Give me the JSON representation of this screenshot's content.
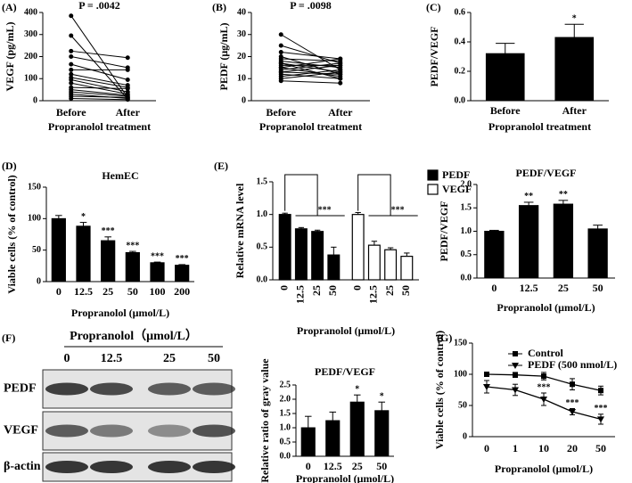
{
  "chart_data": [
    {
      "type": "paired",
      "panel_label": "(A)",
      "title": "P = .0042",
      "ylabel": "VEGF (pg/mL)",
      "xlabel": "Propranolol treatment",
      "categories": [
        "Before",
        "After"
      ],
      "ylim": [
        0,
        400
      ],
      "yticks": [
        0,
        100,
        200,
        300,
        400
      ],
      "color": "#000000",
      "pairs": [
        [
          385,
          15
        ],
        [
          295,
          8
        ],
        [
          225,
          195
        ],
        [
          200,
          150
        ],
        [
          165,
          95
        ],
        [
          140,
          140
        ],
        [
          120,
          70
        ],
        [
          105,
          60
        ],
        [
          95,
          40
        ],
        [
          80,
          30
        ],
        [
          60,
          55
        ],
        [
          50,
          25
        ],
        [
          40,
          20
        ],
        [
          30,
          10
        ],
        [
          20,
          15
        ],
        [
          10,
          5
        ]
      ]
    },
    {
      "type": "paired",
      "panel_label": "(B)",
      "title": "P = .0098",
      "ylabel": "PEDF (μg/mL)",
      "xlabel": "Propranolol treatment",
      "categories": [
        "Before",
        "After"
      ],
      "ylim": [
        0,
        40
      ],
      "yticks": [
        0,
        10,
        20,
        30,
        40
      ],
      "color": "#000000",
      "pairs": [
        [
          30,
          14
        ],
        [
          25,
          17
        ],
        [
          22,
          19
        ],
        [
          20,
          12
        ],
        [
          19,
          18
        ],
        [
          18,
          15
        ],
        [
          17,
          13
        ],
        [
          16,
          16
        ],
        [
          15,
          11
        ],
        [
          14,
          17
        ],
        [
          13,
          12
        ],
        [
          12,
          10
        ],
        [
          11,
          14
        ],
        [
          10,
          13
        ],
        [
          9,
          8
        ],
        [
          17,
          10
        ],
        [
          15,
          19
        ],
        [
          13,
          16
        ]
      ]
    },
    {
      "type": "bar",
      "panel_label": "(C)",
      "ylabel": "PEDF/VEGF",
      "xlabel": "Propranolol treatment",
      "categories": [
        "Before",
        "After"
      ],
      "values": [
        0.32,
        0.43
      ],
      "errors": [
        0.07,
        0.09
      ],
      "annotations": [
        null,
        "*"
      ],
      "color": "#000000",
      "ylim": [
        0,
        0.6
      ],
      "yticks": [
        {
          "value": 0,
          "label": "0.0"
        },
        {
          "value": 0.2,
          "label": "0.2"
        },
        {
          "value": 0.4,
          "label": "0.4"
        },
        {
          "value": 0.6,
          "label": "0.6"
        }
      ]
    },
    {
      "type": "bar",
      "panel_label": "(D)",
      "title": "HemEC",
      "ylabel": "Viable cells (% of control)",
      "xlabel": "Propranolol (μmol/L)",
      "categories": [
        "0",
        "12.5",
        "25",
        "50",
        "100",
        "200"
      ],
      "values": [
        100,
        88,
        65,
        46,
        30,
        26
      ],
      "errors": [
        5,
        6,
        6,
        2,
        1,
        1
      ],
      "annotations": [
        null,
        "*",
        "***",
        "***",
        "***",
        "***"
      ],
      "color": "#000000",
      "ylim": [
        0,
        150
      ],
      "yticks": [
        0,
        50,
        100,
        150
      ]
    },
    {
      "type": "grouped_bar",
      "panel_label": "(E)",
      "ylabel": "Relative mRNA level",
      "xlabel": "Propranolol (μmol/L)",
      "categories": [
        "0",
        "12.5",
        "25",
        "50"
      ],
      "legend": "right",
      "series": [
        {
          "name": "PEDF",
          "color": "#000000",
          "values": [
            1.0,
            0.78,
            0.74,
            0.38
          ],
          "errors": [
            0.02,
            0.02,
            0.02,
            0.12
          ],
          "annotation": "***"
        },
        {
          "name": "VEGF",
          "color": "#ffffff",
          "values": [
            1.0,
            0.53,
            0.46,
            0.36
          ],
          "errors": [
            0.03,
            0.06,
            0.03,
            0.05
          ],
          "annotation": "***"
        }
      ],
      "ylim": [
        0,
        1.5
      ],
      "yticks": [
        {
          "value": 0,
          "label": "0.0"
        },
        {
          "value": 0.5,
          "label": "0.5"
        },
        {
          "value": 1,
          "label": "1.0"
        },
        {
          "value": 1.5,
          "label": "1.5"
        }
      ]
    },
    {
      "type": "bar",
      "title": "PEDF/VEGF",
      "ylabel": "PEDF/VEGF",
      "xlabel": "Propranolol (μmol/L)",
      "categories": [
        "0",
        "12.5",
        "25",
        "50"
      ],
      "values": [
        1.0,
        1.55,
        1.58,
        1.05
      ],
      "errors": [
        0.02,
        0.07,
        0.08,
        0.08
      ],
      "annotations": [
        null,
        "**",
        "**",
        null
      ],
      "color": "#000000",
      "ylim": [
        0,
        2
      ],
      "yticks": [
        {
          "value": 0,
          "label": "0.0"
        },
        {
          "value": 0.5,
          "label": "0.5"
        },
        {
          "value": 1,
          "label": "1.0"
        },
        {
          "value": 1.5,
          "label": "1.5"
        },
        {
          "value": 2,
          "label": "2.0"
        }
      ]
    },
    {
      "type": "bar",
      "title": "PEDF/VEGF",
      "ylabel": "Relative ratio of gray value",
      "xlabel": "Propranolol (μmol/L)",
      "categories": [
        "0",
        "12.5",
        "25",
        "50"
      ],
      "values": [
        1.0,
        1.25,
        1.9,
        1.6
      ],
      "errors": [
        0.4,
        0.3,
        0.25,
        0.3
      ],
      "annotations": [
        null,
        null,
        "*",
        "*"
      ],
      "color": "#000000",
      "ylim": [
        0,
        2.5
      ],
      "yticks": [
        {
          "value": 0,
          "label": "0.0"
        },
        {
          "value": 0.5,
          "label": "0.5"
        },
        {
          "value": 1,
          "label": "1.0"
        },
        {
          "value": 1.5,
          "label": "1.5"
        },
        {
          "value": 2,
          "label": "2.0"
        },
        {
          "value": 2.5,
          "label": "2.5"
        }
      ]
    },
    {
      "type": "line",
      "panel_label": "(G)",
      "ylabel": "Viable cells (% of control)",
      "xlabel": "Propranolol (μmol/L)",
      "categories": [
        "0",
        "1",
        "10",
        "20",
        "50"
      ],
      "legend": "upper-right",
      "series": [
        {
          "name": "Control",
          "color": "#000000",
          "marker": "square",
          "values": [
            100,
            99,
            97,
            84,
            74
          ],
          "errors": [
            2,
            4,
            6,
            9,
            7
          ],
          "annotations": [
            null,
            null,
            null,
            null,
            null
          ]
        },
        {
          "name": "PEDF (500 nmol/L)",
          "color": "#000000",
          "marker": "triangle-down",
          "values": [
            80,
            75,
            60,
            40,
            28
          ],
          "errors": [
            10,
            9,
            10,
            5,
            8
          ],
          "annotations": [
            null,
            null,
            "***",
            "***",
            "***"
          ]
        }
      ],
      "ylim": [
        0,
        150
      ],
      "yticks": [
        0,
        50,
        100,
        150
      ]
    }
  ],
  "blot": {
    "panel_label": "(F)",
    "title": "Propranolol（μmol/L）",
    "lanes": [
      "0",
      "12.5",
      "25",
      "50"
    ],
    "rows": [
      "PEDF",
      "VEGF",
      "β-actin"
    ]
  }
}
